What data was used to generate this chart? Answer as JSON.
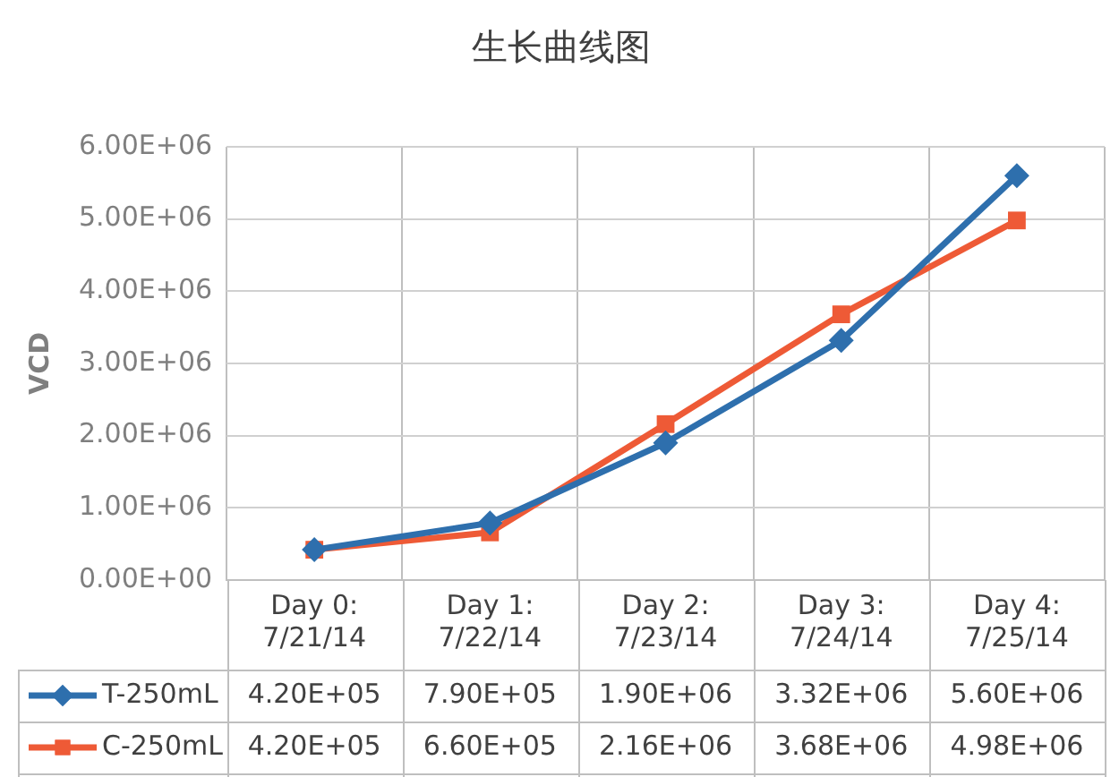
{
  "chart_data": {
    "type": "line",
    "title": "生长曲线图",
    "ylabel": "VCD",
    "categories": [
      "Day 0:\n7/21/14",
      "Day 1:\n7/22/14",
      "Day 2:\n7/23/14",
      "Day 3:\n7/24/14",
      "Day 4:\n7/25/14"
    ],
    "series": [
      {
        "name": "T-250mL",
        "color": "#2e6fad",
        "marker": "diamond",
        "values": [
          420000,
          790000,
          1900000,
          3320000,
          5600000
        ],
        "value_labels": [
          "4.20E+05",
          "7.90E+05",
          "1.90E+06",
          "3.32E+06",
          "5.60E+06"
        ]
      },
      {
        "name": "C-250mL",
        "color": "#ee5a36",
        "marker": "square",
        "values": [
          420000,
          660000,
          2160000,
          3680000,
          4980000
        ],
        "value_labels": [
          "4.20E+05",
          "6.60E+05",
          "2.16E+06",
          "3.68E+06",
          "4.98E+06"
        ]
      }
    ],
    "ylim": [
      0,
      6000000
    ],
    "yticks": [
      {
        "value": 0,
        "label": "0.00E+00"
      },
      {
        "value": 1000000,
        "label": "1.00E+06"
      },
      {
        "value": 2000000,
        "label": "2.00E+06"
      },
      {
        "value": 3000000,
        "label": "3.00E+06"
      },
      {
        "value": 4000000,
        "label": "4.00E+06"
      },
      {
        "value": 5000000,
        "label": "5.00E+06"
      },
      {
        "value": 6000000,
        "label": "6.00E+06"
      }
    ],
    "grid": true,
    "legend": "bottom",
    "line_style": "solid"
  }
}
